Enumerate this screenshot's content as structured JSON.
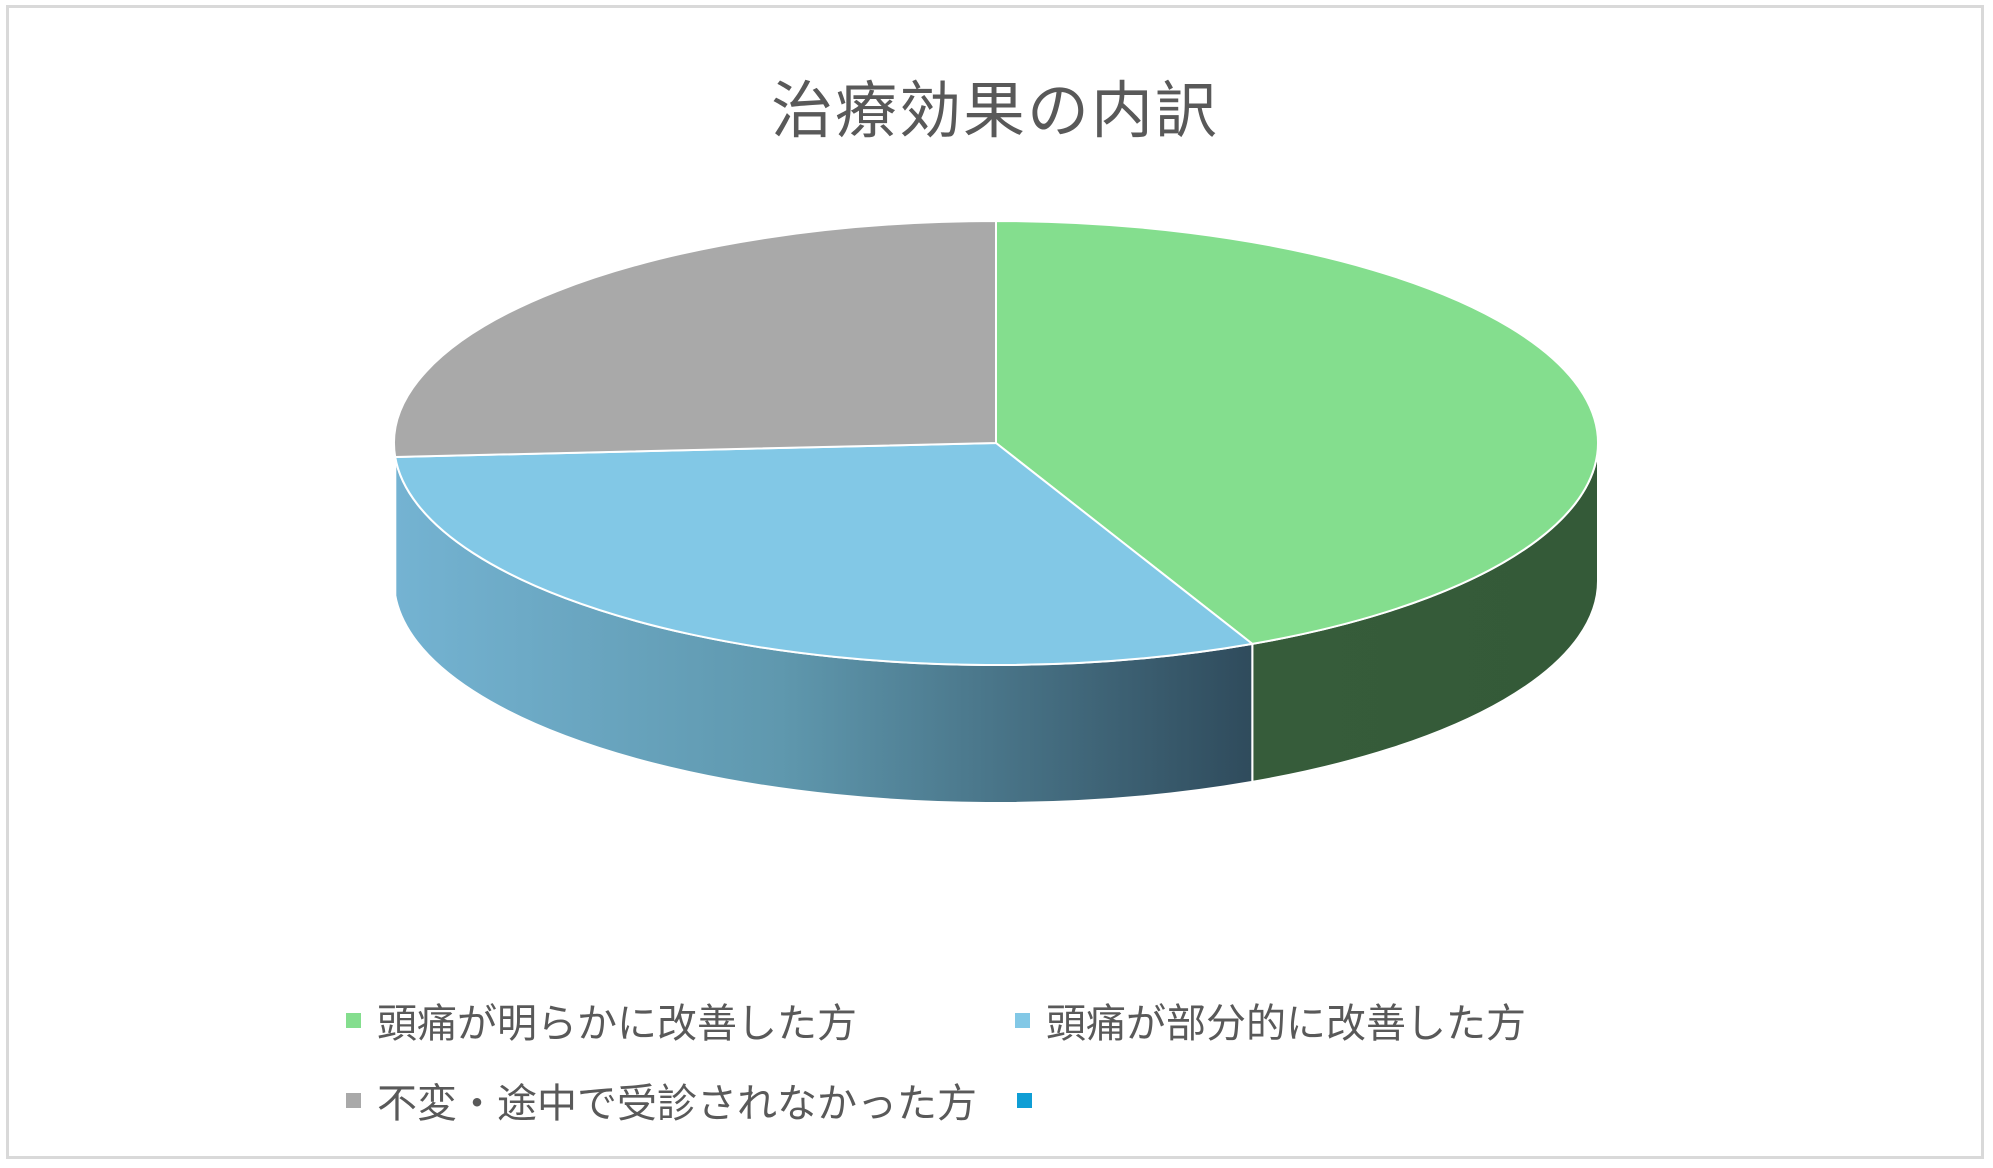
{
  "chart_data": {
    "type": "pie",
    "title": "治療効果の内訳",
    "slices": [
      {
        "label": "頭痛が明らかに改善した方",
        "value": 43,
        "color": "#84DE8E",
        "side_color": "#355C3A"
      },
      {
        "label": "頭痛が部分的に改善した方",
        "value": 31,
        "color": "#82C8E6",
        "side_color": "#5E9BB8"
      },
      {
        "label": "不変・途中で受診されなかった方",
        "value": 26,
        "color": "#A9A9A9",
        "side_color": "#7A7A7A"
      },
      {
        "label": "",
        "value": 0,
        "color": "#0F9ED5",
        "side_color": "#0F9ED5"
      }
    ],
    "legend_position": "bottom"
  }
}
